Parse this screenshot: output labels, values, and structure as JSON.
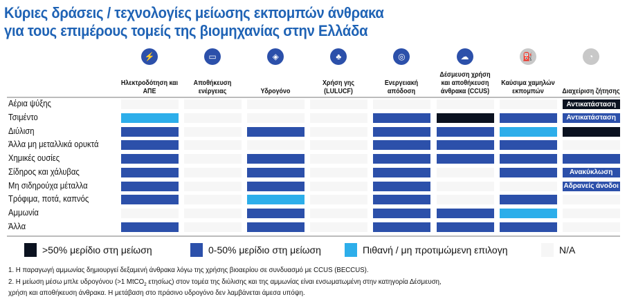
{
  "title_line1": "Κύριες δράσεις / τεχνολογίες μείωσης εκπομπών άνθρακα",
  "title_line2": "για τους επιμέρους τομείς της βιομηχανίας στην Ελλάδα",
  "chart_data": {
    "type": "table",
    "columns": [
      {
        "label": "Ηλεκτροδότηση και ΑΠΕ",
        "icon": "transmission-tower-icon",
        "active": true
      },
      {
        "label": "Αποθήκευση ενέργειας",
        "icon": "battery-vehicle-icon",
        "active": true
      },
      {
        "label": "Υδρογόνο",
        "icon": "hydrogen-icon",
        "active": true
      },
      {
        "label": "Χρήση γης (LULUCF)",
        "icon": "trees-icon",
        "active": true
      },
      {
        "label": "Ενεργειακή απόδοση",
        "icon": "target-icon",
        "active": true
      },
      {
        "label": "Δέσμευση χρήση και αποθήκευση άνθρακα (CCUS)",
        "icon": "cloud-capture-icon",
        "active": true
      },
      {
        "label": "Καύσιμα χαμηλών εκπομπών",
        "icon": "fuel-icon",
        "active": false
      },
      {
        "label": "Διαχείριση ζήτησης",
        "icon": "demand-gauge-icon",
        "active": false
      }
    ],
    "rows": [
      {
        "label": "Αέρια ψύξης",
        "cells": [
          "N",
          "N",
          "N",
          "N",
          "N",
          "N",
          "N",
          "D"
        ],
        "notes": {
          "7": "Αντικατάσταση"
        }
      },
      {
        "label": "Τσιμέντο",
        "cells": [
          "L",
          "N",
          "N",
          "N",
          "B",
          "D",
          "B",
          "B"
        ],
        "notes": {
          "7": "Αντικατάσταση"
        }
      },
      {
        "label": "Διύλιση",
        "cells": [
          "B",
          "N",
          "B",
          "N",
          "B",
          "B",
          "L",
          "D"
        ],
        "notes": {}
      },
      {
        "label": "Άλλα μη μεταλλικά ορυκτά",
        "cells": [
          "B",
          "N",
          "N",
          "N",
          "B",
          "B",
          "B",
          "N"
        ],
        "notes": {}
      },
      {
        "label": "Χημικές ουσίες",
        "cells": [
          "B",
          "N",
          "B",
          "N",
          "B",
          "B",
          "B",
          "B"
        ],
        "notes": {}
      },
      {
        "label": "Σίδηρος και χάλυβας",
        "cells": [
          "B",
          "N",
          "B",
          "N",
          "B",
          "N",
          "B",
          "B"
        ],
        "notes": {
          "7": "Ανακύκλωση"
        }
      },
      {
        "label": "Μη σιδηρούχα μέταλλα",
        "cells": [
          "B",
          "N",
          "B",
          "N",
          "B",
          "N",
          "N",
          "B"
        ],
        "notes": {
          "7": "Αδρανείς άνοδοι"
        }
      },
      {
        "label": "Τρόφιμα, ποτά, καπνός",
        "cells": [
          "B",
          "N",
          "L",
          "N",
          "B",
          "N",
          "B",
          "N"
        ],
        "notes": {}
      },
      {
        "label": "Αμμωνία",
        "cells": [
          "N",
          "N",
          "B",
          "N",
          "B",
          "B",
          "L",
          "N"
        ],
        "notes": {}
      },
      {
        "label": "Άλλα",
        "cells": [
          "B",
          "N",
          "B",
          "N",
          "B",
          "B",
          "B",
          "N"
        ],
        "notes": {}
      }
    ],
    "legend": [
      {
        "code": "D",
        "label": ">50% μερίδιο στη μείωση",
        "color": "#0b1220"
      },
      {
        "code": "B",
        "label": "0-50% μερίδιο στη μείωση",
        "color": "#2c50aa"
      },
      {
        "code": "L",
        "label": "Πιθανή / μη προτιμώμενη επιλογη",
        "color": "#2daeea"
      },
      {
        "code": "N",
        "label": "N/A",
        "color": "#f6f6f6"
      }
    ]
  },
  "colors": {
    "title": "#1f63b5",
    "icon_active": "#2c50aa",
    "icon_inactive": "#c8c8c8"
  },
  "footnotes": {
    "f1": "1. Η παραγωγή αμμωνίας δημιουργεί δεξαμενή άνθρακα λόγω της χρήσης βιοαερίου σε συνδυασμό με CCUS (BECCUS).",
    "f2a": "2. Η μείωση μέσω μπλε υδρογόνου (>1 MtCO",
    "f2sub": "2",
    "f2b": " ετησίως) στον τομέα της διύλισης και της αμμωνίας είναι ενσωματωμένη στην κατηγορία Δέσμευση,",
    "f2c": "χρήση και αποθήκευση άνθρακα. Η μετάβαση στο πράσινο υδρογόνο δεν λαμβάνεται άμεσα υπόψη."
  }
}
